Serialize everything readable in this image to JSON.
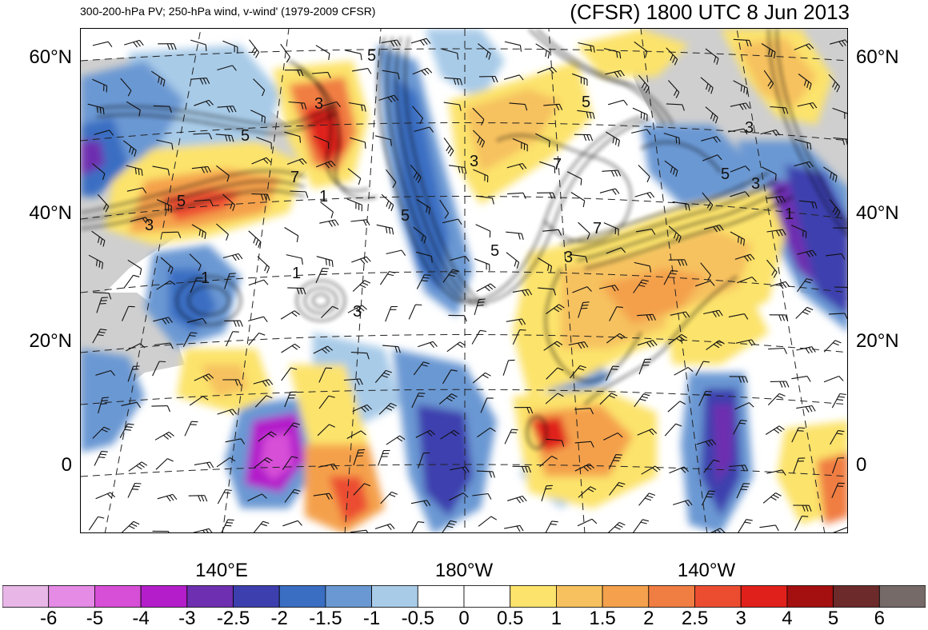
{
  "header": {
    "left_title": "300-200-hPa PV; 250-hPa wind, v-wind' (1979-2009 CFSR)",
    "right_title": "(CFSR) 1800 UTC 8 Jun 2013"
  },
  "axes": {
    "lat_labels": [
      "60°N",
      "40°N",
      "20°N",
      "0"
    ],
    "lon_labels": [
      "140°E",
      "180°W",
      "140°W"
    ]
  },
  "map": {
    "contour_labels": [
      "5",
      "3",
      "7",
      "5",
      "3",
      "1",
      "3",
      "5",
      "7",
      "5",
      "1",
      "1",
      "5",
      "3",
      "3",
      "7",
      "5",
      "3",
      "1",
      "5",
      "3"
    ]
  },
  "colorbar": {
    "labels": [
      "-6",
      "-5",
      "-4",
      "-3",
      "-2.5",
      "-2",
      "-1.5",
      "-1",
      "-0.5",
      "0",
      "0.5",
      "1",
      "1.5",
      "2",
      "2.5",
      "3",
      "4",
      "5",
      "6"
    ],
    "colors": [
      "#e8b7e8",
      "#e58ae5",
      "#d74fd7",
      "#b31eca",
      "#6e2fb0",
      "#3e3fae",
      "#3a6ec2",
      "#6a98d3",
      "#a8cbe8",
      "#ffffff",
      "#ffffff",
      "#fce36c",
      "#f6c15e",
      "#f4a04c",
      "#f07d42",
      "#ec4d30",
      "#e0201a",
      "#a40f0f",
      "#6c2a2a",
      "#766a68"
    ]
  }
}
